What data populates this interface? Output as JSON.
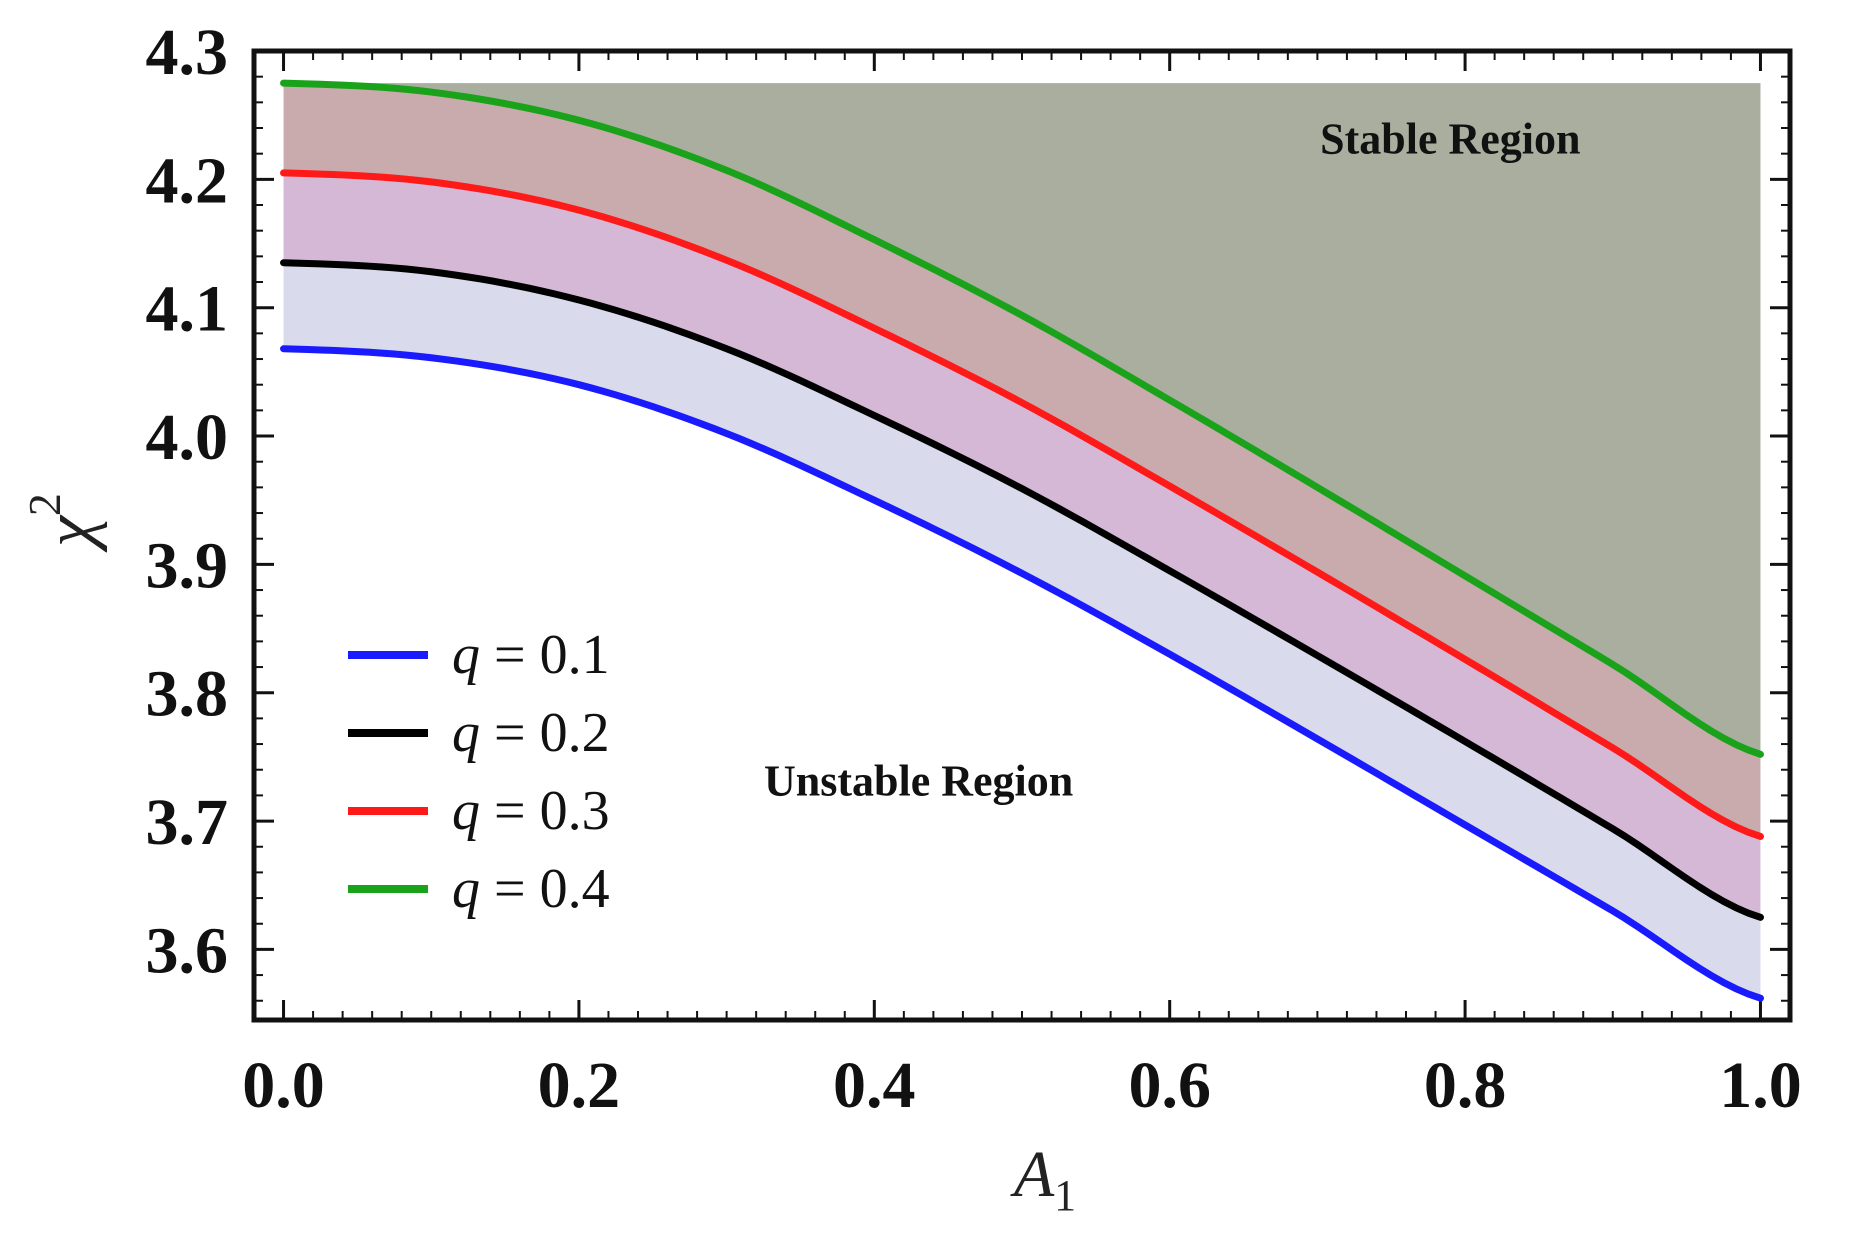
{
  "chart_data": {
    "type": "line",
    "title": "",
    "xlabel": "A",
    "xlabel_sub": "1",
    "ylabel": "χ",
    "ylabel_sup": "2",
    "xlim": [
      -0.02,
      1.02
    ],
    "ylim": [
      3.545,
      4.3
    ],
    "x_ticks": [
      0.0,
      0.2,
      0.4,
      0.6,
      0.8,
      1.0
    ],
    "x_tick_labels": [
      "0.0",
      "0.2",
      "0.4",
      "0.6",
      "0.8",
      "1.0"
    ],
    "y_ticks": [
      3.6,
      3.7,
      3.8,
      3.9,
      4.0,
      4.1,
      4.2,
      4.3
    ],
    "y_tick_labels": [
      "3.6",
      "3.7",
      "3.8",
      "3.9",
      "4.0",
      "4.1",
      "4.2",
      "4.3"
    ],
    "x": [
      0.0,
      0.1,
      0.2,
      0.3,
      0.4,
      0.5,
      0.6,
      0.7,
      0.8,
      0.9,
      1.0
    ],
    "series": [
      {
        "name": "q = 0.1",
        "q": "0.1",
        "color": "#1a1aff",
        "values": [
          4.068,
          4.061,
          4.04,
          4.002,
          3.95,
          3.893,
          3.83,
          3.764,
          3.697,
          3.63,
          3.562
        ]
      },
      {
        "name": "q = 0.2",
        "q": "0.2",
        "color": "#000000",
        "values": [
          4.135,
          4.128,
          4.106,
          4.068,
          4.016,
          3.959,
          3.895,
          3.829,
          3.762,
          3.694,
          3.625
        ]
      },
      {
        "name": "q = 0.3",
        "q": "0.3",
        "color": "#ff1a1a",
        "values": [
          4.205,
          4.198,
          4.176,
          4.137,
          4.084,
          4.026,
          3.961,
          3.894,
          3.826,
          3.757,
          3.688
        ]
      },
      {
        "name": "q = 0.4",
        "q": "0.4",
        "color": "#1aa31a",
        "values": [
          4.275,
          4.268,
          4.246,
          4.207,
          4.153,
          4.094,
          4.028,
          3.96,
          3.891,
          3.822,
          3.752
        ]
      }
    ],
    "fill_colors": [
      "#d9daec",
      "#d5b8d5",
      "#c9abad",
      "#a9ae9f"
    ],
    "annotations": [
      {
        "id": "stable",
        "text": "Stable Region",
        "x": 0.79,
        "y": 4.22
      },
      {
        "id": "unstable",
        "text": "Unstable Region",
        "x": 0.43,
        "y": 3.72
      }
    ],
    "legend": {
      "position": "center-left",
      "var": "q",
      "eq": "="
    }
  }
}
